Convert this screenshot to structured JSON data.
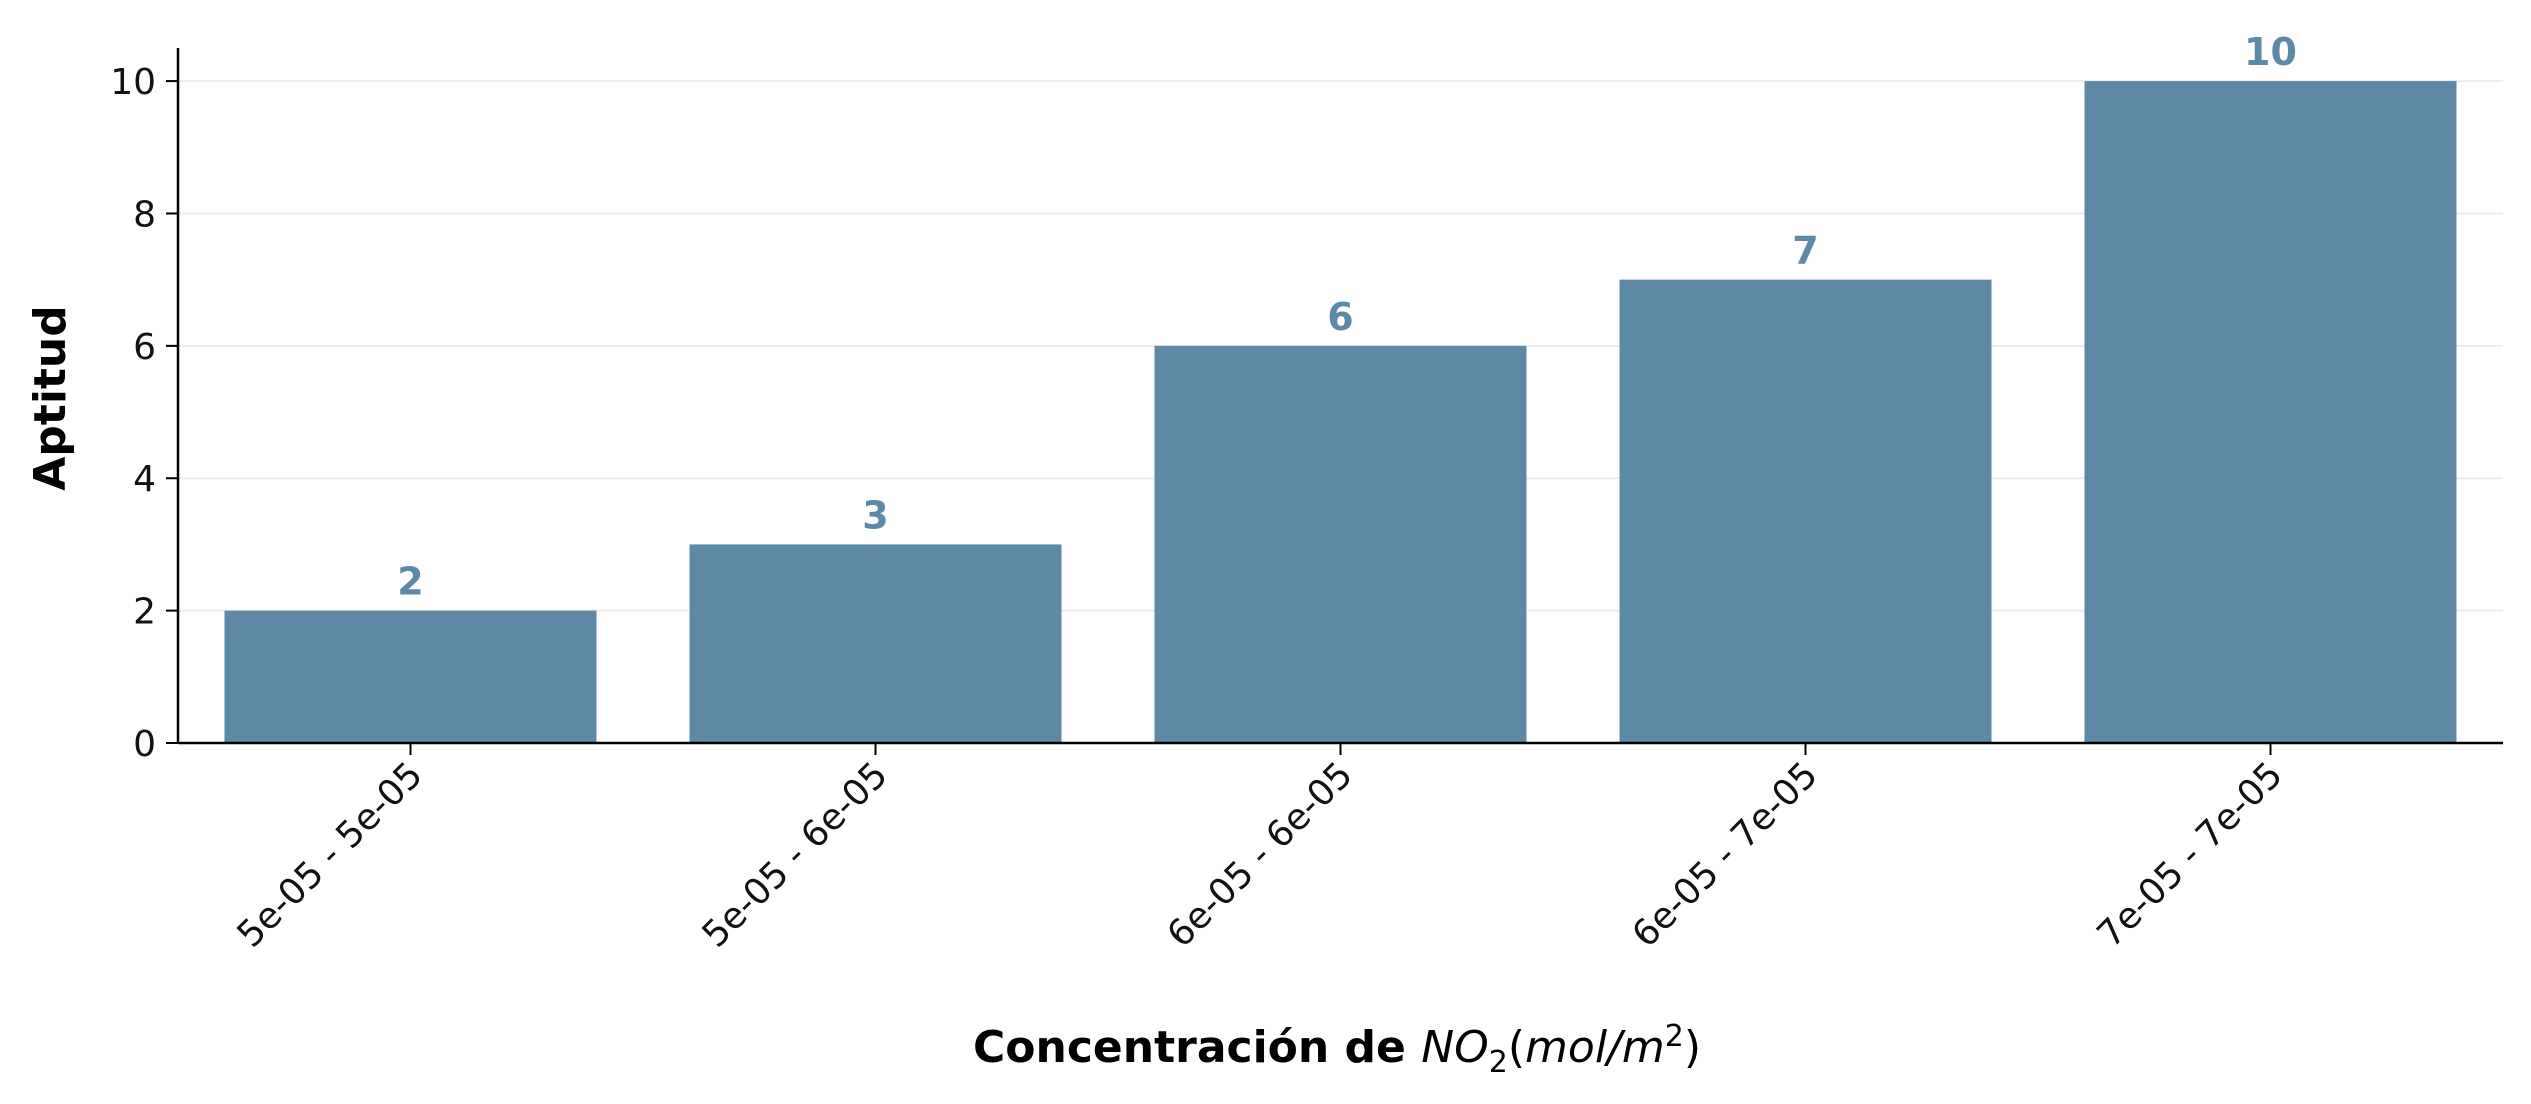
{
  "chart_data": {
    "type": "bar",
    "categories": [
      "5e-05 - 5e-05",
      "5e-05 - 6e-05",
      "6e-05 - 6e-05",
      "6e-05 - 7e-05",
      "7e-05 - 7e-05"
    ],
    "values": [
      2,
      3,
      6,
      7,
      10
    ],
    "data_labels": [
      "2",
      "3",
      "6",
      "7",
      "10"
    ],
    "title": "",
    "xlabel": {
      "bold_text": "Concentración de ",
      "formula_main": "NO",
      "formula_sub": "2",
      "unit_open": "(",
      "unit_main": "mol/m",
      "unit_sup": "2",
      "unit_close": ")"
    },
    "ylabel": "Aptitud",
    "ylim": [
      0,
      10.5
    ],
    "yticks": [
      0,
      2,
      4,
      6,
      8,
      10
    ],
    "grid": "horizontal",
    "bar_color": "#5d89a7",
    "label_color": "#5d89a7",
    "grid_color": "#ececec"
  }
}
